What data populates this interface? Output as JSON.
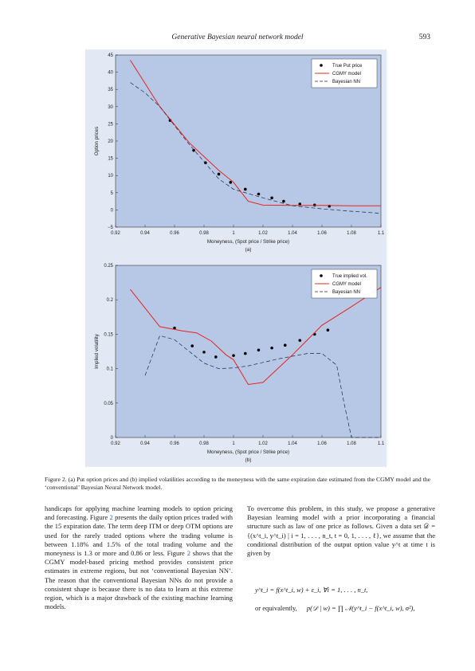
{
  "header": {
    "title": "Generative Bayesian neural network model",
    "page_number": "593"
  },
  "chart_data": [
    {
      "type": "line",
      "panel_label": "(a)",
      "xlabel": "Moneyness, (Spot price / Strike price)",
      "ylabel": "Option prices",
      "xlim": [
        0.92,
        1.1
      ],
      "ylim": [
        -5,
        45
      ],
      "x_ticks": [
        0.92,
        0.94,
        0.96,
        0.98,
        1,
        1.02,
        1.04,
        1.06,
        1.08,
        1.1
      ],
      "x_tick_labels": [
        "0.92",
        "0.94",
        "0.96",
        "0.98",
        "1",
        "1.02",
        "1.04",
        "1.06",
        "1.08",
        "1.1"
      ],
      "y_ticks": [
        -5,
        0,
        5,
        10,
        15,
        20,
        25,
        30,
        35,
        40,
        45
      ],
      "y_tick_labels": [
        "−5",
        "0",
        "5",
        "10",
        "15",
        "20",
        "25",
        "30",
        "35",
        "40",
        "45"
      ],
      "legend_position": "top-right",
      "series": [
        {
          "name": "True Put price",
          "style": "markers",
          "color": "#000000",
          "x": [
            0.957,
            0.973,
            0.981,
            0.99,
            0.998,
            1.008,
            1.017,
            1.026,
            1.034,
            1.045,
            1.055,
            1.065
          ],
          "y": [
            26,
            17.3,
            13.7,
            10.4,
            8,
            6,
            4.6,
            3.5,
            2.5,
            1.7,
            1.4,
            1.1
          ]
        },
        {
          "name": "CGMY model",
          "style": "solid",
          "color": "#e8251c",
          "x": [
            0.93,
            0.95,
            0.97,
            0.99,
            1.0,
            1.01,
            1.02,
            1.04,
            1.06,
            1.08,
            1.1
          ],
          "y": [
            43.5,
            30,
            19.5,
            11.5,
            8,
            2.5,
            1.4,
            1.3,
            1.3,
            1.2,
            1.2
          ]
        },
        {
          "name": "Bayesian NN",
          "style": "dashed",
          "color": "#1f2a44",
          "x": [
            0.93,
            0.94,
            0.95,
            0.96,
            0.97,
            0.98,
            0.99,
            1.0,
            1.02,
            1.04,
            1.06,
            1.08,
            1.1
          ],
          "y": [
            37,
            34,
            30,
            24.5,
            19,
            14,
            9,
            6,
            3.5,
            1.2,
            0.3,
            -0.4,
            -1
          ]
        }
      ]
    },
    {
      "type": "line",
      "panel_label": "(b)",
      "xlabel": "Moneyness, (Spot price / Strike price)",
      "ylabel": "Implied volatility",
      "xlim": [
        0.92,
        1.1
      ],
      "ylim": [
        0,
        0.25
      ],
      "x_ticks": [
        0.92,
        0.94,
        0.96,
        0.98,
        1,
        1.02,
        1.04,
        1.06,
        1.08,
        1.1
      ],
      "x_tick_labels": [
        "0.92",
        "0.94",
        "0.96",
        "0.98",
        "1",
        "1.02",
        "1.04",
        "1.06",
        "1.08",
        "1.1"
      ],
      "y_ticks": [
        0,
        0.05,
        0.1,
        0.15,
        0.2,
        0.25
      ],
      "y_tick_labels": [
        "0",
        "0.05",
        "0.1",
        "0.15",
        "0.2",
        "0.25"
      ],
      "legend_position": "top-right",
      "series": [
        {
          "name": "True implied vol.",
          "style": "markers",
          "color": "#000000",
          "x": [
            0.96,
            0.972,
            0.98,
            0.988,
            1.0,
            1.008,
            1.017,
            1.026,
            1.035,
            1.045,
            1.055,
            1.064
          ],
          "y": [
            0.159,
            0.133,
            0.124,
            0.117,
            0.119,
            0.122,
            0.127,
            0.13,
            0.134,
            0.141,
            0.15,
            0.156
          ]
        },
        {
          "name": "CGMY model",
          "style": "solid",
          "color": "#e8251c",
          "x": [
            0.93,
            0.95,
            0.965,
            0.975,
            0.985,
            0.995,
            1.0,
            1.01,
            1.02,
            1.04,
            1.06,
            1.08,
            1.1
          ],
          "y": [
            0.215,
            0.161,
            0.155,
            0.152,
            0.14,
            0.12,
            0.113,
            0.077,
            0.08,
            0.12,
            0.163,
            0.19,
            0.218
          ]
        },
        {
          "name": "Bayesian NN",
          "style": "dashed",
          "color": "#1f2a44",
          "x": [
            0.94,
            0.95,
            0.96,
            0.97,
            0.98,
            0.99,
            1.0,
            1.01,
            1.02,
            1.03,
            1.04,
            1.05,
            1.06,
            1.07,
            1.075,
            1.08,
            1.1
          ],
          "y": [
            0.09,
            0.148,
            0.142,
            0.125,
            0.108,
            0.1,
            0.101,
            0.104,
            0.109,
            0.114,
            0.118,
            0.122,
            0.122,
            0.105,
            0.05,
            0,
            0
          ]
        }
      ]
    }
  ],
  "figure": {
    "caption": "Figure 2.  (a) Put option prices and (b) implied volatilities according to the moneyness with the same expiration date estimated from the CGMY model and the ‘conventional’ Bayesian Neural Network model."
  },
  "left_column": {
    "p1_a": "handicaps for applying machine learning models to option pricing and forecasting. Figure ",
    "ref1": "2",
    "p1_b": " presents the daily option prices traded with the 15 expiration date. The term deep ITM or deep OTM options are used for the rarely traded options where the trading volume is between 1.18% and 1.5% of the total trading volume and the moneyness is 1.3 or more and 0.86 or less. Figure ",
    "ref2": "2",
    "p1_c": " shows that the CGMY model-based pricing method provides consistent price estimates in extreme regions, but not ‘conventional Bayesian NN’. The reason that the conventional Bayesian NNs do not provide a consistent shape is because there is no data to learn at this extreme region, which is a major drawback of the existing machine learning models."
  },
  "right_column": {
    "paragraph": "To overcome this problem, in this study, we propose a generative Bayesian learning model with a prior incorporating a financial structure such as law of one price as follows. Given a data set 𝒟 = {(x^t_i, y^t_i) | i = 1, . . . , n_t, t = 0, 1, . . . , ℓ}, we assume that the conditional distribution of the output option value y^t at time t is given by",
    "equation1": "y^t_i = f(x^t_i, w) + ε_i,     ∀i = 1, . . . , n_t,",
    "equation2_lead": "or equivalently,",
    "equation2": "p(𝒟 | w) = ∏ 𝒩(y^t_i − f(x^t_i, w), σ²),"
  }
}
